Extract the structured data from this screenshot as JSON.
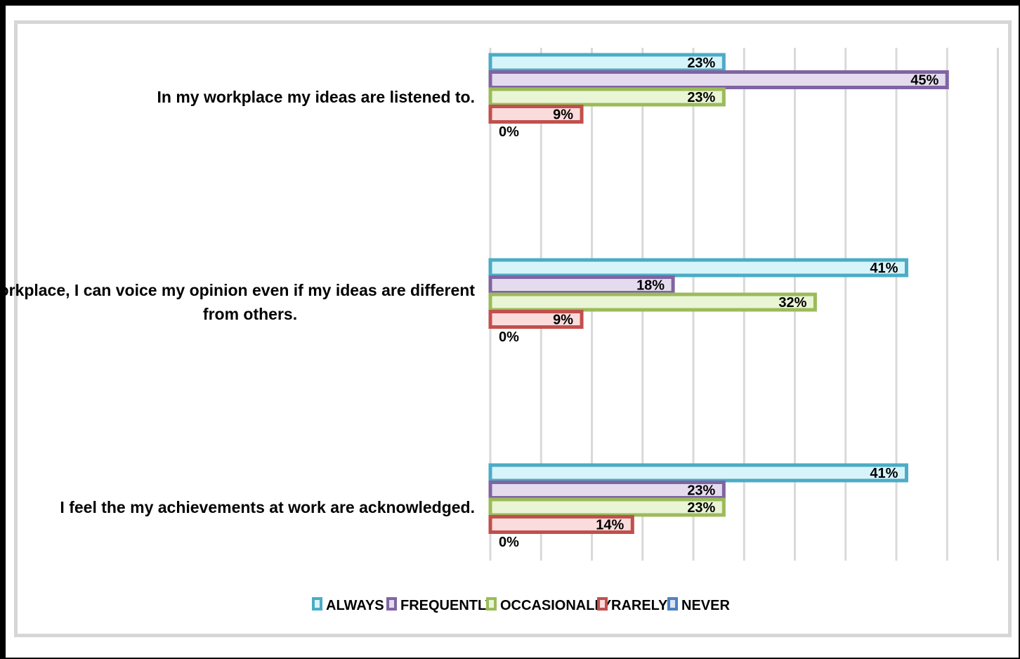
{
  "chart_data": {
    "type": "bar",
    "orientation": "horizontal",
    "title": "",
    "xlabel": "",
    "ylabel": "",
    "xlim": [
      0,
      50
    ],
    "grid": true,
    "legend_position": "bottom",
    "categories": [
      [
        "In my workplace my ideas are listened to."
      ],
      [
        "In my workplace, I can voice my opinion even if my ideas are different",
        "from others."
      ],
      [
        "I feel the my achievements at work are acknowledged."
      ]
    ],
    "series": [
      {
        "name": "ALWAYS",
        "values": [
          23,
          41,
          41
        ],
        "labels": [
          "23%",
          "41%",
          "41%"
        ],
        "color": "#4bacc6",
        "fill": "#d8f4fb"
      },
      {
        "name": "FREQUENTLY",
        "values": [
          45,
          18,
          23
        ],
        "labels": [
          "45%",
          "18%",
          "23%"
        ],
        "color": "#8064a2",
        "fill": "#e4dcee"
      },
      {
        "name": "OCCASIONALLY",
        "values": [
          23,
          32,
          23
        ],
        "labels": [
          "23%",
          "32%",
          "23%"
        ],
        "color": "#9bbb59",
        "fill": "#eaf5d6"
      },
      {
        "name": "RARELY",
        "values": [
          9,
          9,
          14
        ],
        "labels": [
          "9%",
          "9%",
          "14%"
        ],
        "color": "#c0504d",
        "fill": "#fbdcdc"
      },
      {
        "name": "NEVER",
        "values": [
          0,
          0,
          0
        ],
        "labels": [
          "0%",
          "0%",
          "0%"
        ],
        "color": "#4f81bd",
        "fill": "#dce6f4"
      }
    ]
  }
}
